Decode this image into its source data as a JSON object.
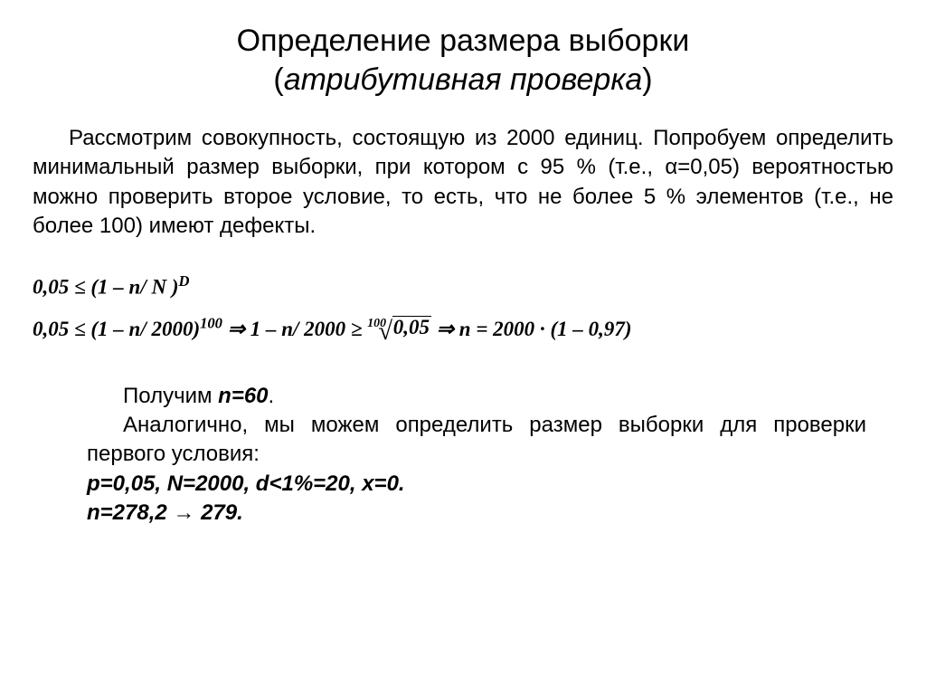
{
  "title_line1": "Определение размера выборки",
  "title_line2_paren_open": "(",
  "title_line2_italic": "атрибутивная проверка",
  "title_line2_paren_close": ")",
  "para1": "Рассмотрим совокупность, состоящую из 2000 единиц. Попробуем определить минимальный размер выборки, при котором с 95 % (т.е., α=0,05) вероятностью можно проверить второе условие, то есть, что не более 5 % элементов (т.е., не более 100) имеют дефекты.",
  "formula1_lhs": "0,05 ≤ ",
  "formula1_paren": "(1 – n/ N )",
  "formula1_exp": "D",
  "formula2_lhs": "0,05 ≤ ",
  "formula2_paren": "(1 – n/ 2000)",
  "formula2_exp": "100",
  "formula2_imply1": " ⇒ 1 – n/ 2000 ≥ ",
  "formula2_root_index": "100",
  "formula2_root_arg": "0,05",
  "formula2_imply2": " ⇒ n = 2000 · ",
  "formula2_final_paren": "(1 – 0,97)",
  "para2_line1_a": "Получим ",
  "para2_line1_b": "n=60",
  "para2_line1_c": ".",
  "para2_line2": "Аналогично, мы можем определить размер выборки для проверки первого условия:",
  "para2_line3": "p=0,05, N=2000, d<1%=20, x=0.",
  "para2_line4_a": "n=278,2 ",
  "para2_line4_arrow": "→",
  "para2_line4_b": " 279.",
  "colors": {
    "text": "#000000",
    "background": "#ffffff"
  },
  "fonts": {
    "body": "Arial",
    "formula": "Times New Roman"
  }
}
